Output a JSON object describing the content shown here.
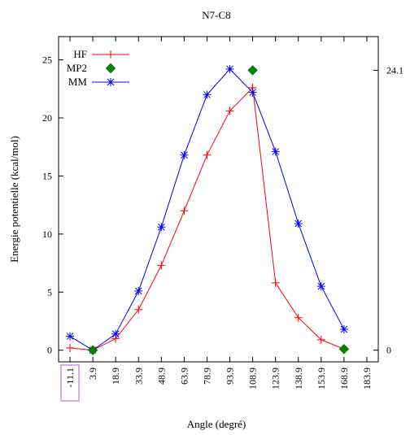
{
  "chart_data": {
    "type": "line",
    "title": "N7-C8",
    "xlabel": "Angle (degré)",
    "ylabel": "Energie potentielle (kcal/mol)",
    "xlim": [
      -18.6,
      191.4
    ],
    "ylim": [
      -1,
      27
    ],
    "x_ticks": [
      "-11.1",
      "3.9",
      "18.9",
      "33.9",
      "48.9",
      "63.9",
      "78.9",
      "93.9",
      "108.9",
      "123.9",
      "138.9",
      "153.9",
      "168.9",
      "183.9"
    ],
    "y_ticks": [
      "0",
      "5",
      "10",
      "15",
      "20",
      "25"
    ],
    "right_ticks": [
      {
        "value": 0,
        "label": "0"
      },
      {
        "value": 24.1,
        "label": "24.1"
      }
    ],
    "highlighted_tick": "-11.1",
    "grid": false,
    "legend": "top-left",
    "series": [
      {
        "name": "HF",
        "color": "#ff0000",
        "marker": "plus",
        "line": true,
        "x": [
          -11.1,
          3.9,
          18.9,
          33.9,
          48.9,
          63.9,
          78.9,
          93.9,
          108.9,
          123.9,
          138.9,
          153.9,
          168.9
        ],
        "y": [
          0.2,
          0.0,
          1.0,
          3.5,
          7.3,
          12.0,
          16.8,
          20.6,
          22.6,
          5.8,
          2.8,
          0.9,
          0.1
        ]
      },
      {
        "name": "MP2",
        "color": "#008000",
        "marker": "diamond",
        "line": false,
        "x": [
          3.9,
          108.9,
          168.9
        ],
        "y": [
          0.0,
          24.1,
          0.1
        ]
      },
      {
        "name": "MM",
        "color": "#0000ff",
        "marker": "star",
        "line": true,
        "x": [
          -11.1,
          3.9,
          18.9,
          33.9,
          48.9,
          63.9,
          78.9,
          93.9,
          108.9,
          123.9,
          138.9,
          153.9,
          168.9
        ],
        "y": [
          1.2,
          0.0,
          1.4,
          5.1,
          10.6,
          16.8,
          22.0,
          24.2,
          22.2,
          17.1,
          10.9,
          5.5,
          1.8
        ]
      }
    ]
  }
}
